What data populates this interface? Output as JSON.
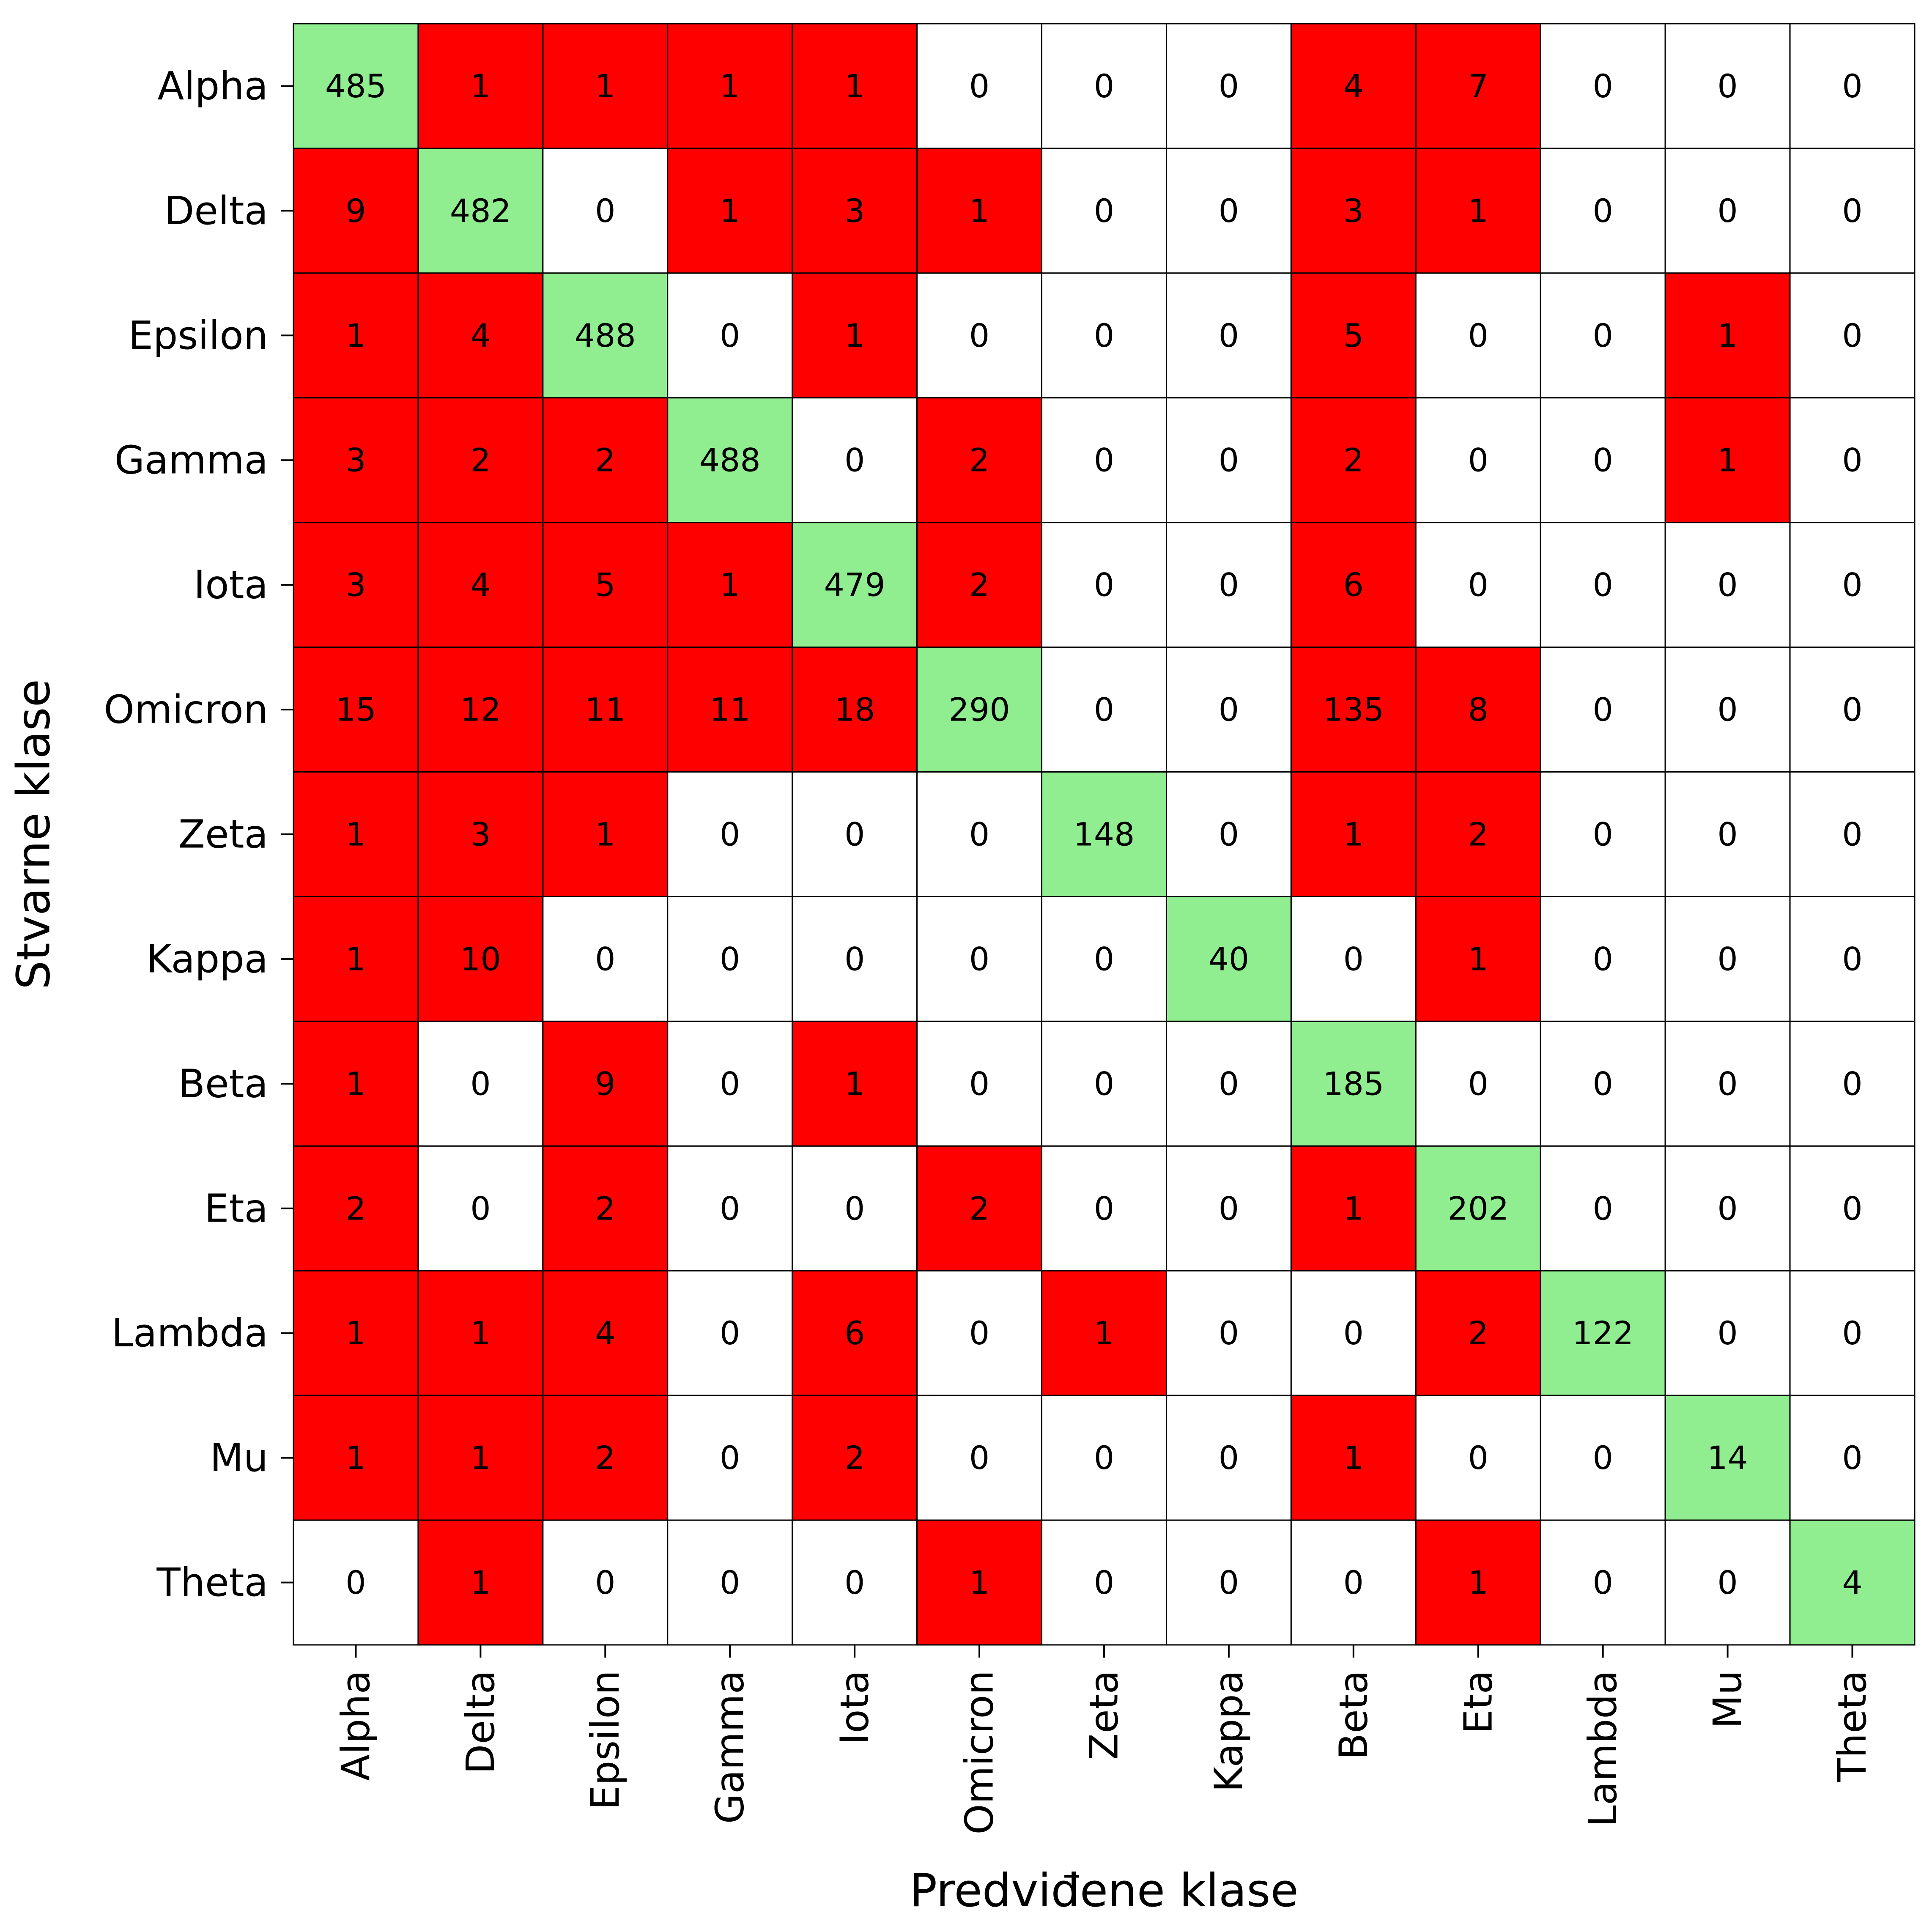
{
  "chart_data": {
    "type": "heatmap",
    "title": "",
    "xlabel": "Predviđene klase",
    "ylabel": "Stvarne klase",
    "x_categories": [
      "Alpha",
      "Delta",
      "Epsilon",
      "Gamma",
      "Iota",
      "Omicron",
      "Zeta",
      "Kappa",
      "Beta",
      "Eta",
      "Lambda",
      "Mu",
      "Theta"
    ],
    "y_categories": [
      "Alpha",
      "Delta",
      "Epsilon",
      "Gamma",
      "Iota",
      "Omicron",
      "Zeta",
      "Kappa",
      "Beta",
      "Eta",
      "Lambda",
      "Mu",
      "Theta"
    ],
    "matrix": [
      [
        485,
        1,
        1,
        1,
        1,
        0,
        0,
        0,
        4,
        7,
        0,
        0,
        0
      ],
      [
        9,
        482,
        0,
        1,
        3,
        1,
        0,
        0,
        3,
        1,
        0,
        0,
        0
      ],
      [
        1,
        4,
        488,
        0,
        1,
        0,
        0,
        0,
        5,
        0,
        0,
        1,
        0
      ],
      [
        3,
        2,
        2,
        488,
        0,
        2,
        0,
        0,
        2,
        0,
        0,
        1,
        0
      ],
      [
        3,
        4,
        5,
        1,
        479,
        2,
        0,
        0,
        6,
        0,
        0,
        0,
        0
      ],
      [
        15,
        12,
        11,
        11,
        18,
        290,
        0,
        0,
        135,
        8,
        0,
        0,
        0
      ],
      [
        1,
        3,
        1,
        0,
        0,
        0,
        148,
        0,
        1,
        2,
        0,
        0,
        0
      ],
      [
        1,
        10,
        0,
        0,
        0,
        0,
        0,
        40,
        0,
        1,
        0,
        0,
        0
      ],
      [
        1,
        0,
        9,
        0,
        1,
        0,
        0,
        0,
        185,
        0,
        0,
        0,
        0
      ],
      [
        2,
        0,
        2,
        0,
        0,
        2,
        0,
        0,
        1,
        202,
        0,
        0,
        0
      ],
      [
        1,
        1,
        4,
        0,
        6,
        0,
        1,
        0,
        0,
        2,
        122,
        0,
        0
      ],
      [
        1,
        1,
        2,
        0,
        2,
        0,
        0,
        0,
        1,
        0,
        0,
        14,
        0
      ],
      [
        0,
        1,
        0,
        0,
        0,
        1,
        0,
        0,
        0,
        1,
        0,
        0,
        4
      ]
    ],
    "colors": {
      "diagonal": "#90ee90",
      "misclassified": "#ff0000",
      "zero": "#ffffff",
      "grid": "#000000"
    },
    "legend": "none",
    "grid": true
  }
}
